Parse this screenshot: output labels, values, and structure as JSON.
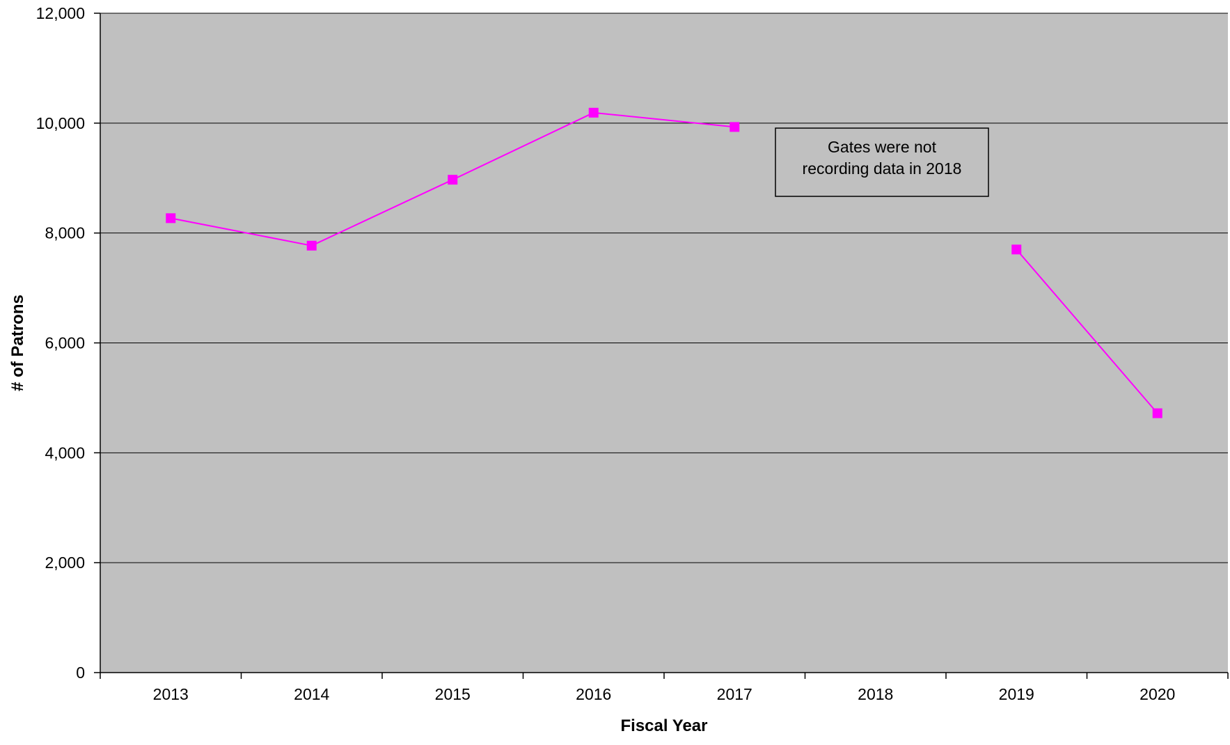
{
  "chart_data": {
    "type": "line",
    "title": "",
    "xlabel": "Fiscal Year",
    "ylabel": "# of Patrons",
    "categories": [
      "2013",
      "2014",
      "2015",
      "2016",
      "2017",
      "2018",
      "2019",
      "2020"
    ],
    "series": [
      {
        "values": [
          8270,
          7770,
          8970,
          10190,
          9930,
          null,
          7700,
          4720
        ]
      }
    ],
    "ylim": [
      0,
      12000
    ],
    "yticks": [
      0,
      2000,
      4000,
      6000,
      8000,
      10000,
      12000
    ],
    "ytick_labels": [
      "0",
      "2,000",
      "4,000",
      "6,000",
      "8,000",
      "10,000",
      "12,000"
    ],
    "grid": "horizontal",
    "annotation": {
      "lines": [
        "Gates were not",
        "recording data in 2018"
      ]
    },
    "colors": {
      "plot_background": "#c0c0c0",
      "series_line": "#ff00ff",
      "marker": "#ff00ff",
      "gridline": "#000000",
      "axis": "#000000"
    }
  }
}
